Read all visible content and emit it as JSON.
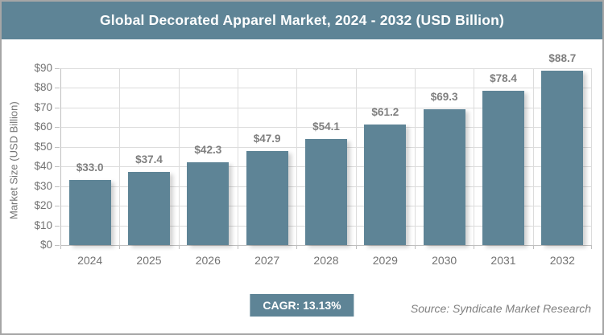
{
  "title": "Global Decorated Apparel Market, 2024 - 2032 (USD Billion)",
  "cagr_label": "CAGR: 13.13%",
  "source": "Source: Syndicate Market Research",
  "colors": {
    "accent": "#5E8496",
    "grid": "#DCDCDC",
    "axis": "#BFBFBF",
    "tick_text": "#737373",
    "value_text": "#7F7F7F",
    "frame_border": "#A6A6A6",
    "title_text": "#FFFFFF"
  },
  "chart_data": {
    "type": "bar",
    "title": "Global Decorated Apparel Market, 2024 - 2032 (USD Billion)",
    "categories": [
      "2024",
      "2025",
      "2026",
      "2027",
      "2028",
      "2029",
      "2030",
      "2031",
      "2032"
    ],
    "values": [
      33.0,
      37.4,
      42.3,
      47.9,
      54.1,
      61.2,
      69.3,
      78.4,
      88.7
    ],
    "data_labels": [
      "$33.0",
      "$37.4",
      "$42.3",
      "$47.9",
      "$54.1",
      "$61.2",
      "$69.3",
      "$78.4",
      "$88.7"
    ],
    "xlabel": "",
    "ylabel": "Market Size (USD Billion)",
    "ylim": [
      0,
      90
    ],
    "ytick_step": 10,
    "ytick_labels": [
      "$0",
      "$10",
      "$20",
      "$30",
      "$40",
      "$50",
      "$60",
      "$70",
      "$80",
      "$90"
    ],
    "grid": true,
    "legend": false,
    "bar_color": "#5E8496",
    "annotation": "CAGR: 13.13%"
  }
}
